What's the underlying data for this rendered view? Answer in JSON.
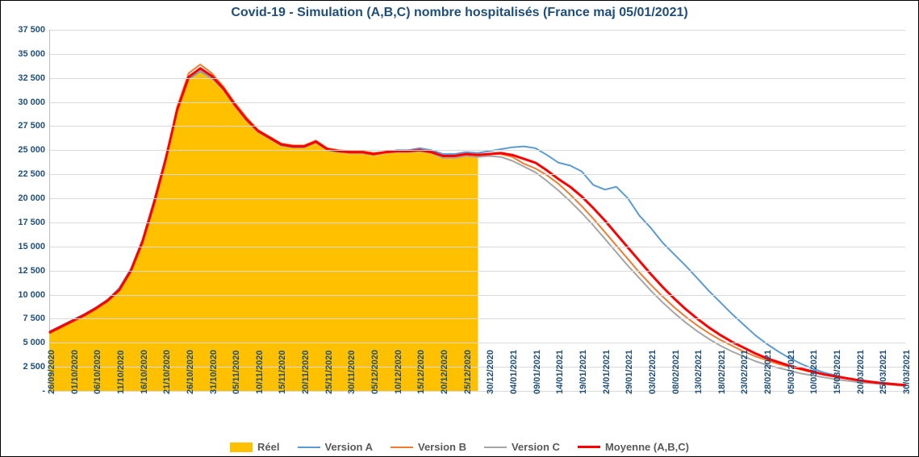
{
  "chart": {
    "type": "mixed-line-area",
    "title": "Covid-19 - Simulation (A,B,C)  nombre hospitalisés (France maj 05/01/2021)",
    "title_color": "#1f4e79",
    "title_fontsize": 16,
    "background_color": "#ffffff",
    "border_color": "#000000",
    "axis_label_color": "#1f4e79",
    "axis_label_fontsize": 11,
    "grid_color": "#d9d9d9",
    "y_axis": {
      "min": 0,
      "max": 37500,
      "tick_step": 2500,
      "tick_format_space_thousands": true
    },
    "x_ticks": [
      "26/09/2020",
      "01/10/2020",
      "06/10/2020",
      "11/10/2020",
      "16/10/2020",
      "21/10/2020",
      "26/10/2020",
      "31/10/2020",
      "05/11/2020",
      "10/11/2020",
      "15/11/2020",
      "20/11/2020",
      "25/11/2020",
      "30/11/2020",
      "05/12/2020",
      "10/12/2020",
      "15/12/2020",
      "20/12/2020",
      "25/12/2020",
      "30/12/2020",
      "04/01/2021",
      "09/01/2021",
      "14/01/2021",
      "19/01/2021",
      "24/01/2021",
      "29/01/2021",
      "03/02/2021",
      "08/02/2021",
      "13/02/2021",
      "18/02/2021",
      "23/02/2021",
      "28/02/2021",
      "05/03/2021",
      "10/03/2021",
      "15/03/2021",
      "20/03/2021",
      "25/03/2021",
      "30/03/2021"
    ],
    "series": {
      "reel": {
        "label": "Réel",
        "type": "area",
        "fill_color": "#ffc000",
        "line_color": "#ffc000",
        "line_width": 1,
        "values": [
          6100,
          6700,
          7300,
          7900,
          8600,
          9400,
          10500,
          12500,
          15500,
          19500,
          24000,
          29000,
          32500,
          33300,
          32600,
          31400,
          29700,
          28200,
          27000,
          26400,
          25700,
          25400,
          25400,
          25900,
          25100,
          24900,
          24800,
          24800,
          24600,
          24800,
          24900,
          24900,
          25000,
          24800,
          24400,
          24400,
          24600,
          24500
        ]
      },
      "version_a": {
        "label": "Version A",
        "type": "line",
        "line_color": "#5b9bd5",
        "line_width": 2,
        "values": [
          6200,
          6800,
          7400,
          8000,
          8700,
          9500,
          10700,
          12700,
          15700,
          19800,
          24200,
          29200,
          32400,
          33200,
          32500,
          31300,
          29600,
          28100,
          26900,
          26200,
          25500,
          25300,
          25300,
          25800,
          25000,
          24800,
          24700,
          24700,
          24500,
          24800,
          25000,
          25000,
          25200,
          25000,
          24600,
          24600,
          24800,
          24700,
          24900,
          25100,
          25300,
          25400,
          25200,
          24500,
          23700,
          23400,
          22800,
          21400,
          20900,
          21200,
          20000,
          18200,
          16900,
          15400,
          14200,
          13000,
          11700,
          10400,
          9200,
          8000,
          6900,
          5800,
          4900,
          4100,
          3400,
          2800,
          2300,
          1900,
          1600,
          1300,
          1100,
          900,
          800,
          700,
          600
        ]
      },
      "version_b": {
        "label": "Version B",
        "type": "line",
        "line_color": "#ed7d31",
        "line_width": 2,
        "values": [
          6000,
          6600,
          7200,
          7800,
          8500,
          9300,
          10400,
          12400,
          15300,
          19300,
          23800,
          29500,
          33000,
          33900,
          33000,
          31600,
          29900,
          28400,
          27100,
          26400,
          25700,
          25500,
          25500,
          26000,
          25200,
          25000,
          24900,
          24900,
          24700,
          24800,
          24900,
          24900,
          25000,
          24800,
          24400,
          24400,
          24600,
          24500,
          24600,
          24600,
          24300,
          23600,
          23100,
          22400,
          21500,
          20400,
          19200,
          17900,
          16500,
          15100,
          13700,
          12300,
          11000,
          9800,
          8700,
          7700,
          6800,
          6000,
          5300,
          4700,
          4100,
          3600,
          3200,
          2800,
          2500,
          2200,
          1900,
          1700,
          1500,
          1300,
          1100,
          950,
          800,
          700,
          600
        ]
      },
      "version_c": {
        "label": "Version C",
        "type": "line",
        "line_color": "#a5a5a5",
        "line_width": 2,
        "values": [
          6100,
          6700,
          7300,
          7900,
          8600,
          9400,
          10500,
          12500,
          15500,
          19500,
          24000,
          29000,
          32500,
          33300,
          32600,
          31400,
          29700,
          28200,
          27000,
          26300,
          25600,
          25400,
          25400,
          25900,
          25000,
          24800,
          24700,
          24700,
          24500,
          24700,
          24800,
          24800,
          24900,
          24700,
          24200,
          24200,
          24400,
          24300,
          24400,
          24300,
          23900,
          23300,
          22700,
          21800,
          20800,
          19700,
          18500,
          17200,
          15800,
          14400,
          13000,
          11700,
          10400,
          9200,
          8100,
          7100,
          6200,
          5400,
          4700,
          4100,
          3600,
          3100,
          2700,
          2400,
          2100,
          1800,
          1600,
          1400,
          1200,
          1050,
          900,
          800,
          700,
          600,
          500
        ]
      },
      "moyenne": {
        "label": "Moyenne (A,B,C)",
        "type": "line",
        "line_color": "#ff0000",
        "line_width": 3,
        "values": [
          6100,
          6700,
          7300,
          7900,
          8600,
          9400,
          10500,
          12500,
          15500,
          19500,
          24000,
          29200,
          32600,
          33500,
          32700,
          31400,
          29700,
          28200,
          27000,
          26300,
          25600,
          25400,
          25400,
          25900,
          25100,
          24900,
          24800,
          24800,
          24600,
          24800,
          24900,
          24900,
          25000,
          24800,
          24400,
          24400,
          24600,
          24500,
          24600,
          24700,
          24500,
          24100,
          23700,
          22900,
          22000,
          21200,
          20200,
          19000,
          17700,
          16300,
          14900,
          13500,
          12100,
          10800,
          9600,
          8500,
          7500,
          6600,
          5800,
          5100,
          4500,
          3900,
          3400,
          3000,
          2600,
          2300,
          2000,
          1700,
          1500,
          1300,
          1100,
          950,
          800,
          700,
          600
        ]
      }
    },
    "legend": {
      "position": "bottom-center",
      "text_color": "#595959",
      "fontsize": 13,
      "items_order": [
        "reel",
        "version_a",
        "version_b",
        "version_c",
        "moyenne"
      ]
    }
  }
}
